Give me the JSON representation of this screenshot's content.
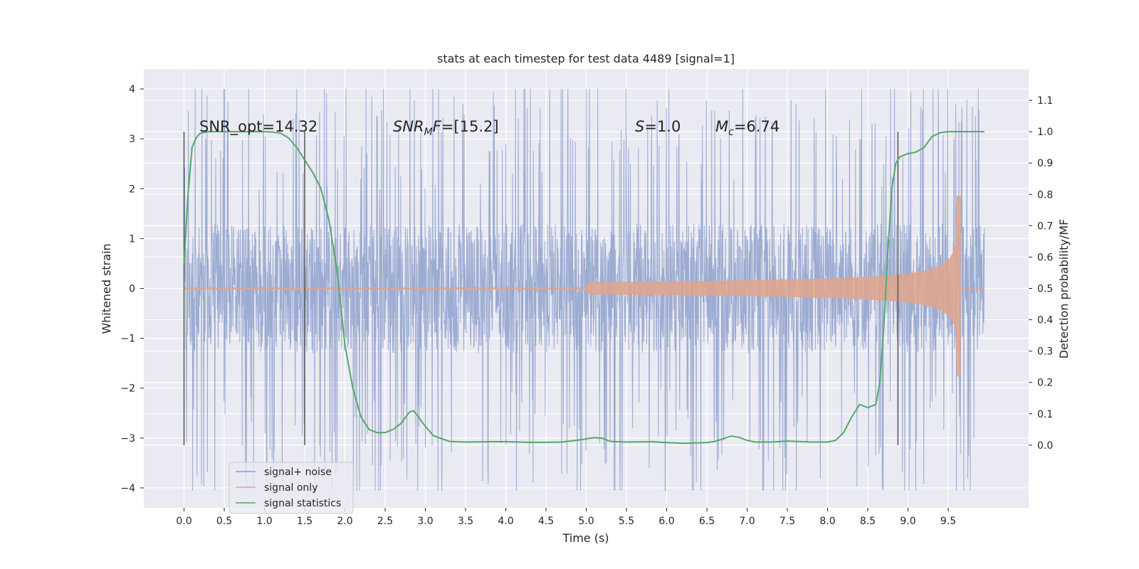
{
  "chart_data": {
    "type": "line",
    "title": "stats at each timestep for test data 4489 [signal=1]",
    "xlabel": "Time (s)",
    "ylabel": "Whitened strain",
    "y2label": "Detection probability/MF",
    "xlim": [
      -0.5,
      10.5
    ],
    "ylim": [
      -4.4,
      4.4
    ],
    "y2lim": [
      -0.2,
      1.2
    ],
    "xticks": [
      0.0,
      0.5,
      1.0,
      1.5,
      2.0,
      2.5,
      3.0,
      3.5,
      4.0,
      4.5,
      5.0,
      5.5,
      6.0,
      6.5,
      7.0,
      7.5,
      8.0,
      8.5,
      9.0,
      9.5
    ],
    "xtick_labels": [
      "0.0",
      "0.5",
      "1.0",
      "1.5",
      "2.0",
      "2.5",
      "3.0",
      "3.5",
      "4.0",
      "4.5",
      "5.0",
      "5.5",
      "6.0",
      "6.5",
      "7.0",
      "7.5",
      "8.0",
      "8.5",
      "9.0",
      "9.5"
    ],
    "yticks": [
      -4,
      -3,
      -2,
      -1,
      0,
      1,
      2,
      3,
      4
    ],
    "ytick_labels": [
      "−4",
      "−3",
      "−2",
      "−1",
      "0",
      "1",
      "2",
      "3",
      "4"
    ],
    "y2ticks": [
      0.0,
      0.1,
      0.2,
      0.3,
      0.4,
      0.5,
      0.6,
      0.7,
      0.8,
      0.9,
      1.0,
      1.1
    ],
    "y2tick_labels": [
      "0.0",
      "0.1",
      "0.2",
      "0.3",
      "0.4",
      "0.5",
      "0.6",
      "0.7",
      "0.8",
      "0.9",
      "1.0",
      "1.1"
    ],
    "grid": true,
    "legend_position": "lower-left",
    "annotations": {
      "snr_opt": "SNR_opt=14.32",
      "snr_mf": "=[15.2]",
      "s_value": "=1.0",
      "mc_value": "=6.74"
    },
    "vertical_markers_x": [
      0.0,
      1.5,
      8.875
    ],
    "series": [
      {
        "name": "signal+ noise",
        "color": "#8da0cb",
        "axis": "left",
        "description_ranges": {
          "core_band": [
            -1.3,
            1.3
          ],
          "spike_max": 4.0,
          "spike_min": -4.05,
          "x_range": [
            0.0,
            9.95
          ]
        }
      },
      {
        "name": "signal only",
        "color": "#e0a48c",
        "axis": "left",
        "chirp": {
          "start_x": 5.0,
          "merger_x": 9.65,
          "peak_amplitude": 1.85,
          "x_end": 9.95
        }
      },
      {
        "name": "signal statistics",
        "color": "#55a868",
        "axis": "right",
        "x": [
          0.0,
          0.05,
          0.1,
          0.15,
          0.2,
          0.3,
          0.5,
          0.8,
          1.0,
          1.1,
          1.2,
          1.3,
          1.4,
          1.5,
          1.6,
          1.7,
          1.8,
          1.9,
          2.0,
          2.05,
          2.1,
          2.2,
          2.3,
          2.4,
          2.5,
          2.6,
          2.7,
          2.8,
          2.85,
          2.9,
          3.0,
          3.1,
          3.3,
          3.5,
          3.8,
          4.0,
          4.3,
          4.5,
          4.7,
          4.9,
          5.0,
          5.1,
          5.2,
          5.3,
          5.5,
          5.8,
          6.0,
          6.2,
          6.5,
          6.6,
          6.7,
          6.8,
          6.9,
          7.0,
          7.1,
          7.3,
          7.5,
          7.8,
          8.0,
          8.1,
          8.2,
          8.3,
          8.4,
          8.5,
          8.6,
          8.65,
          8.7,
          8.75,
          8.8,
          8.85,
          8.9,
          9.0,
          9.1,
          9.2,
          9.3,
          9.4,
          9.5,
          9.7,
          9.95
        ],
        "y": [
          0.58,
          0.8,
          0.95,
          0.98,
          0.995,
          1.0,
          1.0,
          1.0,
          1.0,
          0.999,
          0.995,
          0.98,
          0.95,
          0.91,
          0.87,
          0.82,
          0.72,
          0.56,
          0.32,
          0.25,
          0.18,
          0.09,
          0.05,
          0.04,
          0.04,
          0.05,
          0.07,
          0.105,
          0.11,
          0.095,
          0.06,
          0.03,
          0.012,
          0.01,
          0.011,
          0.011,
          0.009,
          0.009,
          0.01,
          0.016,
          0.02,
          0.024,
          0.022,
          0.012,
          0.01,
          0.011,
          0.008,
          0.006,
          0.008,
          0.012,
          0.02,
          0.029,
          0.025,
          0.015,
          0.01,
          0.01,
          0.013,
          0.01,
          0.01,
          0.015,
          0.04,
          0.09,
          0.13,
          0.12,
          0.13,
          0.2,
          0.38,
          0.62,
          0.82,
          0.9,
          0.92,
          0.93,
          0.935,
          0.95,
          0.985,
          0.997,
          1.0,
          1.0,
          1.0
        ]
      }
    ]
  }
}
